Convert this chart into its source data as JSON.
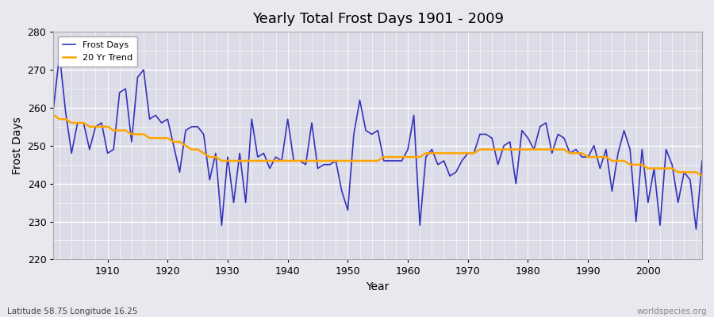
{
  "title": "Yearly Total Frost Days 1901 - 2009",
  "xlabel": "Year",
  "ylabel": "Frost Days",
  "bottom_left_label": "Latitude 58.75 Longitude 16.25",
  "bottom_right_label": "worldspecies.org",
  "legend_labels": [
    "Frost Days",
    "20 Yr Trend"
  ],
  "line_color_blue": "#3333bb",
  "line_color_orange": "#FFA500",
  "background_color": "#e8e8ee",
  "plot_bg_color": "#dcdce8",
  "ylim": [
    220,
    280
  ],
  "yticks": [
    220,
    230,
    240,
    250,
    260,
    270,
    280
  ],
  "xlim": [
    1901,
    2009
  ],
  "xticks": [
    1910,
    1920,
    1930,
    1940,
    1950,
    1960,
    1970,
    1980,
    1990,
    2000
  ],
  "years": [
    1901,
    1902,
    1903,
    1904,
    1905,
    1906,
    1907,
    1908,
    1909,
    1910,
    1911,
    1912,
    1913,
    1914,
    1915,
    1916,
    1917,
    1918,
    1919,
    1920,
    1921,
    1922,
    1923,
    1924,
    1925,
    1926,
    1927,
    1928,
    1929,
    1930,
    1931,
    1932,
    1933,
    1934,
    1935,
    1936,
    1937,
    1938,
    1939,
    1940,
    1941,
    1942,
    1943,
    1944,
    1945,
    1946,
    1947,
    1948,
    1949,
    1950,
    1951,
    1952,
    1953,
    1954,
    1955,
    1956,
    1957,
    1958,
    1959,
    1960,
    1961,
    1962,
    1963,
    1964,
    1965,
    1966,
    1967,
    1968,
    1969,
    1970,
    1971,
    1972,
    1973,
    1974,
    1975,
    1976,
    1977,
    1978,
    1979,
    1980,
    1981,
    1982,
    1983,
    1984,
    1985,
    1986,
    1987,
    1988,
    1989,
    1990,
    1991,
    1992,
    1993,
    1994,
    1995,
    1996,
    1997,
    1998,
    1999,
    2000,
    2001,
    2002,
    2003,
    2004,
    2005,
    2006,
    2007,
    2008,
    2009
  ],
  "frost_days": [
    260,
    274,
    259,
    248,
    256,
    256,
    249,
    255,
    256,
    248,
    249,
    264,
    265,
    251,
    268,
    270,
    257,
    258,
    256,
    257,
    250,
    243,
    254,
    255,
    255,
    253,
    241,
    248,
    229,
    247,
    235,
    248,
    235,
    257,
    247,
    248,
    244,
    247,
    246,
    257,
    246,
    246,
    245,
    256,
    244,
    245,
    245,
    246,
    238,
    233,
    253,
    262,
    254,
    253,
    254,
    246,
    246,
    246,
    246,
    249,
    258,
    229,
    247,
    249,
    245,
    246,
    242,
    243,
    246,
    248,
    248,
    253,
    253,
    252,
    245,
    250,
    251,
    240,
    254,
    252,
    249,
    255,
    256,
    248,
    253,
    252,
    248,
    249,
    247,
    247,
    250,
    244,
    249,
    238,
    248,
    254,
    249,
    230,
    249,
    235,
    244,
    229,
    249,
    245,
    235,
    243,
    241,
    228,
    246
  ],
  "trend_years": [
    1901,
    1902,
    1903,
    1904,
    1905,
    1906,
    1907,
    1908,
    1909,
    1910,
    1911,
    1912,
    1913,
    1914,
    1915,
    1916,
    1917,
    1918,
    1919,
    1920,
    1921,
    1922,
    1923,
    1924,
    1925,
    1926,
    1927,
    1928,
    1929,
    1930,
    1931,
    1932,
    1933,
    1934,
    1935,
    1936,
    1937,
    1938,
    1939,
    1940,
    1941,
    1942,
    1943,
    1944,
    1945,
    1946,
    1947,
    1948,
    1949,
    1950,
    1951,
    1952,
    1953,
    1954,
    1955,
    1956,
    1957,
    1958,
    1959,
    1960,
    1961,
    1962,
    1963,
    1964,
    1965,
    1966,
    1967,
    1968,
    1969,
    1970,
    1971,
    1972,
    1973,
    1974,
    1975,
    1976,
    1977,
    1978,
    1979,
    1980,
    1981,
    1982,
    1983,
    1984,
    1985,
    1986,
    1987,
    1988,
    1989,
    1990,
    1991,
    1992,
    1993,
    1994,
    1995,
    1996,
    1997,
    1998,
    1999,
    2000,
    2001,
    2002,
    2003,
    2004,
    2005,
    2006,
    2007,
    2008,
    2009
  ],
  "trend_values": [
    258,
    257,
    257,
    256,
    256,
    256,
    255,
    255,
    255,
    255,
    254,
    254,
    254,
    253,
    253,
    253,
    252,
    252,
    252,
    252,
    251,
    251,
    250,
    249,
    249,
    248,
    247,
    247,
    246,
    246,
    246,
    246,
    246,
    246,
    246,
    246,
    246,
    246,
    246,
    246,
    246,
    246,
    246,
    246,
    246,
    246,
    246,
    246,
    246,
    246,
    246,
    246,
    246,
    246,
    246,
    247,
    247,
    247,
    247,
    247,
    247,
    247,
    248,
    248,
    248,
    248,
    248,
    248,
    248,
    248,
    248,
    249,
    249,
    249,
    249,
    249,
    249,
    249,
    249,
    249,
    249,
    249,
    249,
    249,
    249,
    249,
    248,
    248,
    248,
    247,
    247,
    247,
    247,
    246,
    246,
    246,
    245,
    245,
    245,
    244,
    244,
    244,
    244,
    244,
    243,
    243,
    243,
    243,
    242
  ]
}
